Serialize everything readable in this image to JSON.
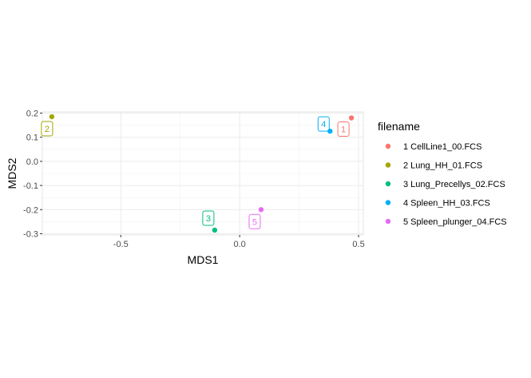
{
  "chart_data": {
    "type": "scatter",
    "xlabel": "MDS1",
    "ylabel": "MDS2",
    "xlim": [
      -0.83,
      0.52
    ],
    "ylim": [
      -0.305,
      0.205
    ],
    "x_ticks": [
      -0.5,
      0.0,
      0.5
    ],
    "x_tick_labels": [
      "-0.5",
      "0.0",
      "0.5"
    ],
    "y_ticks": [
      -0.3,
      -0.2,
      -0.1,
      0.0,
      0.1,
      0.2
    ],
    "y_tick_labels": [
      "-0.3",
      "-0.2",
      "-0.1",
      "0.0",
      "0.1",
      "0.2"
    ],
    "grid": true,
    "legend": {
      "title": "filename",
      "position": "right"
    },
    "points": [
      {
        "label": "1",
        "series": "1 CellLine1_00.FCS",
        "x": 0.47,
        "y": 0.18,
        "color": "#F8766D",
        "label_dx": -10,
        "label_dy": 14
      },
      {
        "label": "2",
        "series": "2 Lung_HH_01.FCS",
        "x": -0.79,
        "y": 0.185,
        "color": "#A3A500",
        "label_dx": -6,
        "label_dy": 15
      },
      {
        "label": "3",
        "series": "3 Lung_Precellys_02.FCS",
        "x": -0.105,
        "y": -0.285,
        "color": "#00BF7D",
        "label_dx": -8,
        "label_dy": -15
      },
      {
        "label": "4",
        "series": "4 Spleen_HH_03.FCS",
        "x": 0.38,
        "y": 0.125,
        "color": "#00B0F6",
        "label_dx": -8,
        "label_dy": -9
      },
      {
        "label": "5",
        "series": "5 Spleen_plunger_04.FCS",
        "x": 0.09,
        "y": -0.2,
        "color": "#E76BF3",
        "label_dx": -8,
        "label_dy": 15
      }
    ]
  }
}
